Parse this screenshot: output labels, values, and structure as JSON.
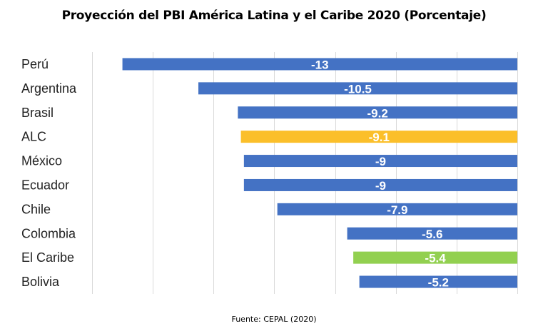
{
  "chart_data": {
    "type": "bar",
    "orientation": "horizontal",
    "title": "Proyección del PBI América Latina y el Caribe 2020 (Porcentaje)",
    "source": "Fuente: CEPAL (2020)",
    "xlabel": "",
    "ylabel": "",
    "xlim": [
      -14,
      0
    ],
    "grid": true,
    "gridline_step": 2,
    "categories": [
      "Perú",
      "Argentina",
      "Brasil",
      "ALC",
      "México",
      "Ecuador",
      "Chile",
      "Colombia",
      "El Caribe",
      "Bolivia"
    ],
    "values": [
      -13,
      -10.5,
      -9.2,
      -9.1,
      -9,
      -9,
      -7.9,
      -5.6,
      -5.4,
      -5.2
    ],
    "data_labels": [
      "-13",
      "-10.5",
      "-9.2",
      "-9.1",
      "-9",
      "-9",
      "-7.9",
      "-5.6",
      "-5.4",
      "-5.2"
    ],
    "colors": [
      "#4472c4",
      "#4472c4",
      "#4472c4",
      "#fbbf2a",
      "#4472c4",
      "#4472c4",
      "#4472c4",
      "#4472c4",
      "#92d050",
      "#4472c4"
    ]
  }
}
